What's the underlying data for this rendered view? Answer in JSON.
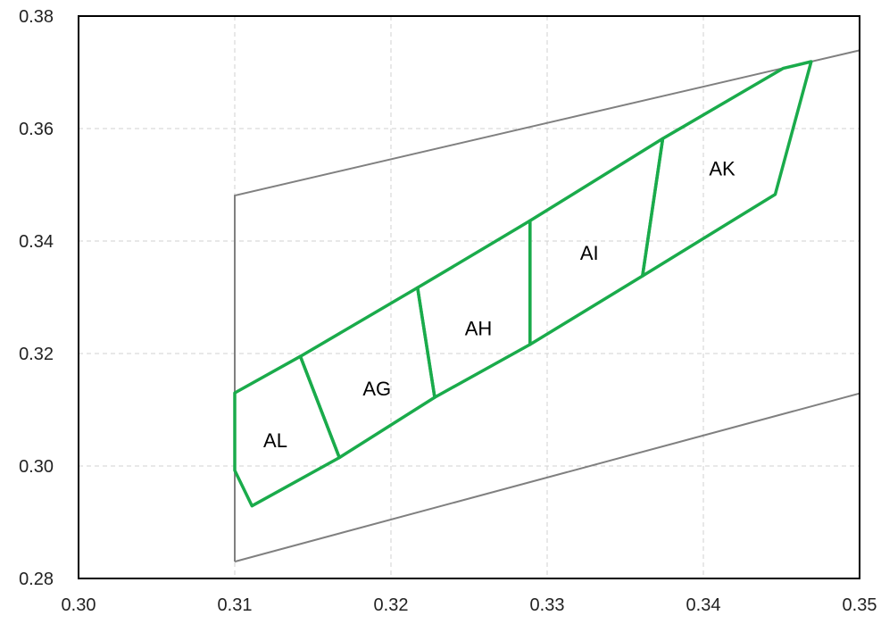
{
  "chart_data": {
    "type": "scatter",
    "title": "",
    "xlabel": "",
    "ylabel": "",
    "xlim": [
      0.3,
      0.35
    ],
    "ylim": [
      0.28,
      0.38
    ],
    "grid": true,
    "x_ticks": [
      "0.30",
      "0.31",
      "0.32",
      "0.33",
      "0.34",
      "0.35"
    ],
    "y_ticks": [
      "0.28",
      "0.30",
      "0.32",
      "0.34",
      "0.36",
      "0.38"
    ],
    "colors": {
      "regions": "#1aab4b",
      "boundary": "#808080",
      "grid": "#d0d0d0",
      "axes": "#000000"
    },
    "boundary_lines": [
      {
        "points": [
          [
            0.31,
            0.283
          ],
          [
            0.31,
            0.3481
          ],
          [
            0.35,
            0.3739
          ]
        ]
      },
      {
        "points": [
          [
            0.31,
            0.283
          ],
          [
            0.35,
            0.3129
          ]
        ]
      }
    ],
    "regions": [
      {
        "name": "AL",
        "label_at": [
          0.3126,
          0.3046
        ],
        "points": [
          [
            0.31,
            0.313
          ],
          [
            0.3142,
            0.3195
          ],
          [
            0.3167,
            0.3015
          ],
          [
            0.3111,
            0.2929
          ],
          [
            0.31,
            0.2992
          ]
        ]
      },
      {
        "name": "AG",
        "label_at": [
          0.3191,
          0.3138
        ],
        "points": [
          [
            0.3142,
            0.3195
          ],
          [
            0.3217,
            0.3317
          ],
          [
            0.3228,
            0.3122
          ],
          [
            0.3167,
            0.3015
          ]
        ]
      },
      {
        "name": "AH",
        "label_at": [
          0.3256,
          0.3245
        ],
        "points": [
          [
            0.3217,
            0.3317
          ],
          [
            0.3289,
            0.3436
          ],
          [
            0.3289,
            0.3216
          ],
          [
            0.3228,
            0.3122
          ]
        ]
      },
      {
        "name": "AI",
        "label_at": [
          0.3327,
          0.3379
        ],
        "points": [
          [
            0.3289,
            0.3436
          ],
          [
            0.3374,
            0.3582
          ],
          [
            0.3361,
            0.3338
          ],
          [
            0.3289,
            0.3216
          ]
        ]
      },
      {
        "name": "AK",
        "label_at": [
          0.3412,
          0.3529
        ],
        "points": [
          [
            0.3374,
            0.3582
          ],
          [
            0.3451,
            0.3707
          ],
          [
            0.3469,
            0.3719
          ],
          [
            0.3446,
            0.3483
          ],
          [
            0.3361,
            0.3338
          ]
        ]
      }
    ]
  }
}
